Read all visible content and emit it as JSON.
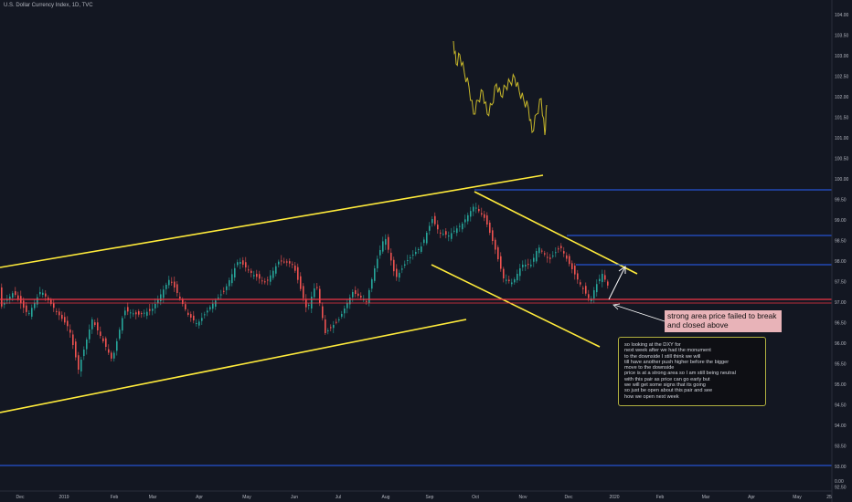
{
  "header": {
    "title": "U.S. Dollar Currency Index, 1D, TVC"
  },
  "axis": {
    "y_ticks": [
      "104.00",
      "103.50",
      "103.00",
      "102.50",
      "102.00",
      "101.50",
      "101.00",
      "100.50",
      "100.00",
      "99.50",
      "99.00",
      "98.50",
      "98.00",
      "97.50",
      "97.00",
      "96.50",
      "96.00",
      "95.50",
      "95.00",
      "94.50",
      "94.00",
      "93.50",
      "93.00",
      "92.50",
      "0.00"
    ],
    "x_ticks": [
      "Dec",
      "2019",
      "Feb",
      "Mar",
      "Apr",
      "May",
      "Jun",
      "Jul",
      "Aug",
      "Sep",
      "Oct",
      "Nov",
      "Dec",
      "2020",
      "Feb",
      "Mar",
      "Apr",
      "May",
      "25"
    ]
  },
  "price_labels": {
    "l1": "99.60",
    "l2": "98.52",
    "l3": "97.83",
    "red": "96.99",
    "last": "96.97",
    "low": "92.98"
  },
  "annotations": {
    "red_box": "strong area price failed to break\nand closed above",
    "note_lines": [
      "so looking at the DXY for",
      "next week after we had the monument",
      "to the downside I still think we will",
      "till have another push higher before the bigger",
      "move to the downside",
      "price is at a strong area so I am still being neutral",
      "with this pair as price can go early but",
      "we will get some signs that its going",
      "so just be open about this pair and see",
      "how we open next week"
    ]
  },
  "colors": {
    "up": "#26a69a",
    "down": "#ef5350",
    "yellow": "#ffeb3b",
    "blue": "#2962ff",
    "red_line": "#f23645",
    "background": "#131722"
  },
  "chart_data": {
    "type": "candlestick",
    "title": "U.S. Dollar Currency Index, 1D, TVC",
    "ylim": [
      92.5,
      104.0
    ],
    "horizontal_levels": [
      99.6,
      98.52,
      97.83,
      96.99,
      92.98
    ],
    "closes_approx": [
      {
        "x": "Dec 2018",
        "y": 97.0
      },
      {
        "x": "2019",
        "y": 96.4
      },
      {
        "x": "Feb",
        "y": 96.6
      },
      {
        "x": "Mar",
        "y": 96.9
      },
      {
        "x": "Apr",
        "y": 97.0
      },
      {
        "x": "May",
        "y": 97.5
      },
      {
        "x": "Jun",
        "y": 96.8
      },
      {
        "x": "Jul",
        "y": 96.5
      },
      {
        "x": "Aug",
        "y": 97.9
      },
      {
        "x": "Sep",
        "y": 98.6
      },
      {
        "x": "Oct",
        "y": 99.3
      },
      {
        "x": "Nov",
        "y": 97.9
      },
      {
        "x": "Dec",
        "y": 97.8
      },
      {
        "x": "2020",
        "y": 96.97
      }
    ]
  }
}
